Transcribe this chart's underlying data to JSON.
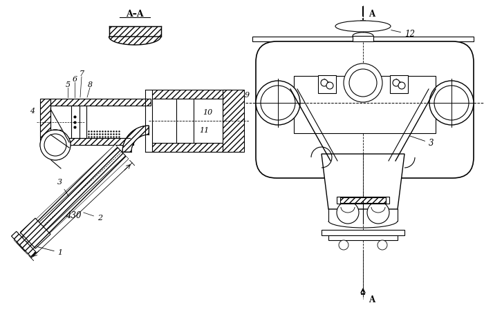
{
  "bg_color": "#ffffff",
  "labels": {
    "AA": "A–A",
    "A": "A",
    "num_1": "1",
    "num_2": "2",
    "num_3": "3",
    "num_4": "4",
    "num_5": "5",
    "num_6": "6",
    "num_7": "7",
    "num_8": "8",
    "num_9": "9",
    "num_10": "10",
    "num_11": "11",
    "num_12": "12",
    "dim_430": "430"
  }
}
